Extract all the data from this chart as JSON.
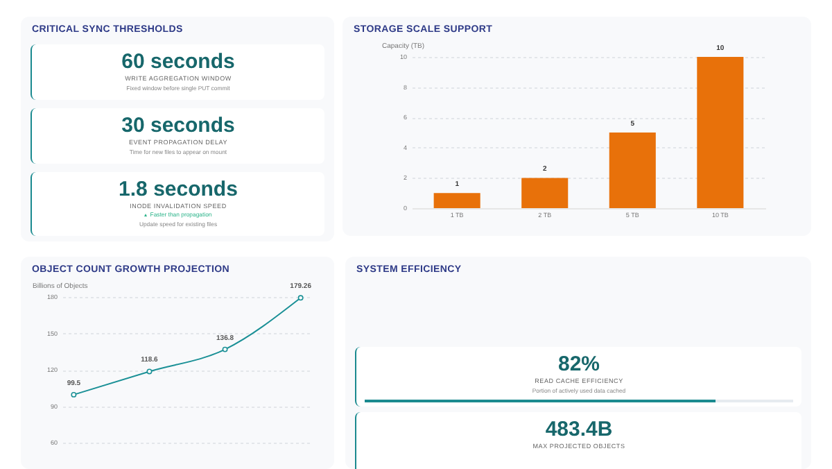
{
  "chart_data": [
    {
      "type": "other",
      "title": "CRITICAL SYNC THRESHOLDS",
      "annotations": [
        "60 seconds",
        "WRITE AGGREGATION WINDOW",
        "Fixed window before single PUT commit",
        "30 seconds",
        "EVENT PROPAGATION DELAY",
        "Time for new files to appear on mount",
        "1.8 seconds",
        "INODE INVALIDATION SPEED",
        "Faster than propagation",
        "Update speed for existing files"
      ]
    },
    {
      "type": "bar",
      "title": "STORAGE SCALE SUPPORT",
      "ylabel": "Capacity (TB)",
      "categories": [
        "1 TB",
        "2 TB",
        "5 TB",
        "10 TB"
      ],
      "values": [
        1,
        2,
        5,
        10
      ],
      "color": "#e8710a",
      "ylim": [
        0,
        10
      ],
      "yticks": [
        0,
        2,
        4,
        6,
        8,
        10
      ],
      "grid": "y",
      "data_labels": true
    },
    {
      "type": "line",
      "title": "OBJECT COUNT GROWTH PROJECTION",
      "ylabel": "Billions of Objects",
      "categories": [
        null,
        null,
        null,
        null
      ],
      "values": [
        99.5,
        118.6,
        136.8,
        179.26
      ],
      "color": "#1a9096",
      "ylim": [
        60,
        180
      ],
      "yticks": [
        60,
        90,
        120,
        150,
        180
      ],
      "grid": "y",
      "marker": "circle",
      "data_labels": true
    },
    {
      "type": "other",
      "title": "SYSTEM EFFICIENCY",
      "annotations": [
        "82%",
        "READ CACHE EFFICIENCY",
        "Portion of actively used data cached",
        "483.4B",
        "MAX PROJECTED OBJECTS"
      ]
    }
  ]
}
